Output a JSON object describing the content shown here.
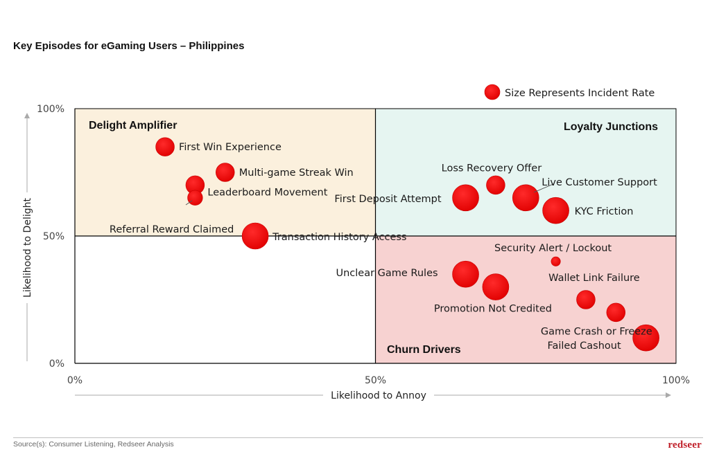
{
  "title": "Key Episodes for eGaming Users – Philippines",
  "legend": {
    "label": "Size Represents Incident Rate"
  },
  "source": "Source(s): Consumer Listening, Redseer Analysis",
  "brand": "redseer",
  "colors": {
    "bubble": "#ee0000",
    "delight_amplifier": "#fbf0dd",
    "loyalty_junctions": "#e6f5f1",
    "churn_drivers": "#f7d2d1",
    "brand": "#c0202a"
  },
  "chart_data": {
    "type": "scatter",
    "title": "Key Episodes for eGaming Users – Philippines",
    "xlabel": "Likelihood to Annoy",
    "ylabel": "Likelihood to Delight",
    "xlim": [
      0,
      100
    ],
    "ylim": [
      0,
      100
    ],
    "xticks": [
      "0%",
      "50%",
      "100%"
    ],
    "yticks": [
      "0%",
      "50%",
      "100%"
    ],
    "size_meaning": "Size Represents Incident Rate",
    "quadrants": [
      {
        "name": "Delight Amplifier",
        "x_range": [
          0,
          50
        ],
        "y_range": [
          50,
          100
        ]
      },
      {
        "name": "Loyalty Junctions",
        "x_range": [
          50,
          100
        ],
        "y_range": [
          50,
          100
        ]
      },
      {
        "name": "Churn Drivers",
        "x_range": [
          50,
          100
        ],
        "y_range": [
          0,
          50
        ]
      }
    ],
    "points": [
      {
        "label": "First Win Experience",
        "x": 15,
        "y": 85,
        "size": 2
      },
      {
        "label": "Multi-game Streak Win",
        "x": 25,
        "y": 75,
        "size": 2
      },
      {
        "label": "Leaderboard Movement",
        "x": 20,
        "y": 70,
        "size": 2
      },
      {
        "label": "Referral Reward Claimed",
        "x": 20,
        "y": 65,
        "size": 1.3
      },
      {
        "label": "Transaction History Access",
        "x": 30,
        "y": 50,
        "size": 4
      },
      {
        "label": "Loss Recovery Offer",
        "x": 70,
        "y": 70,
        "size": 2
      },
      {
        "label": "Live Customer Support",
        "x": 75,
        "y": 65,
        "size": 4
      },
      {
        "label": "First Deposit Attempt",
        "x": 65,
        "y": 65,
        "size": 4
      },
      {
        "label": "KYC Friction",
        "x": 80,
        "y": 60,
        "size": 4
      },
      {
        "label": "Security Alert / Lockout",
        "x": 80,
        "y": 40,
        "size": 0.5
      },
      {
        "label": "Unclear Game Rules",
        "x": 65,
        "y": 35,
        "size": 4
      },
      {
        "label": "Wallet Link Failure",
        "x": 85,
        "y": 25,
        "size": 2
      },
      {
        "label": "Promotion Not Credited",
        "x": 70,
        "y": 30,
        "size": 4
      },
      {
        "label": "Game Crash or Freeze",
        "x": 90,
        "y": 20,
        "size": 2
      },
      {
        "label": "Failed Cashout",
        "x": 95,
        "y": 10,
        "size": 4
      }
    ]
  }
}
